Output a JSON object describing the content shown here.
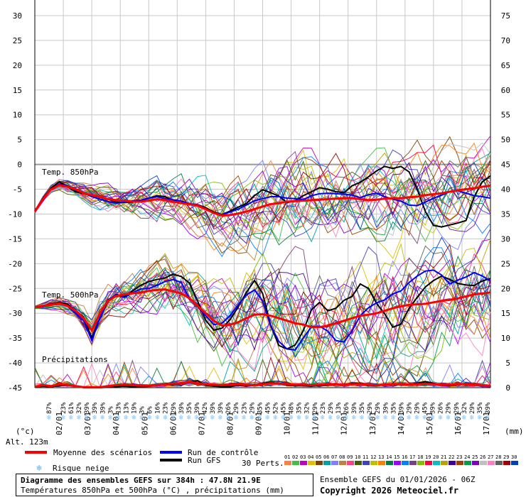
{
  "chart_data": {
    "type": "line",
    "run_days": [
      "02/01",
      "03/01",
      "04/01",
      "05/01",
      "06/01",
      "07/01",
      "08/01",
      "09/01",
      "10/01",
      "11/01",
      "12/01",
      "13/01",
      "14/01",
      "15/01",
      "16/01",
      "17/01"
    ],
    "left_axis": {
      "unit": "(°c)",
      "ticks": [
        30,
        25,
        20,
        15,
        10,
        5,
        0,
        -5,
        -10,
        -15,
        -20,
        -25,
        -30,
        -35,
        -40,
        -45
      ],
      "range": [
        -45,
        30
      ]
    },
    "right_axis": {
      "unit": "(mm)",
      "ticks": [
        75,
        70,
        65,
        60,
        55,
        50,
        45,
        40,
        35,
        30,
        25,
        20,
        15,
        10,
        5,
        0
      ],
      "range": [
        0,
        75
      ]
    },
    "sections": {
      "t850": "Temp. 850hPa",
      "t500": "Temp. 500hPa",
      "precip": "Précipitations"
    },
    "altitude": "Alt. 123m",
    "snow_risk_percent": [
      "87%",
      "23%",
      "61%",
      "32%",
      "39%",
      "39%",
      "39%",
      "3%",
      "13%",
      "13%",
      "19%",
      "3%",
      "6%",
      "16%",
      "23%",
      "29%",
      "39%",
      "35%",
      "39%",
      "42%",
      "39%",
      "39%",
      "26%",
      "29%",
      "23%",
      "29%",
      "35%",
      "45%",
      "52%",
      "45%",
      "48%",
      "35%",
      "32%",
      "29%",
      "23%",
      "29%",
      "13%",
      "26%",
      "39%",
      "35%",
      "29%",
      "29%",
      "39%",
      "35%",
      "39%",
      "29%",
      "29%",
      "45%",
      "39%",
      "26%",
      "29%",
      "29%",
      "32%",
      "29%",
      "35%",
      "39%"
    ],
    "series": [
      {
        "name": "Moyenne des scénarios",
        "group": "t850",
        "values": [
          -9.5,
          -7,
          -5,
          -4.2,
          -4.5,
          -5,
          -5.8,
          -6.2,
          -6.5,
          -7,
          -7.2,
          -7.3,
          -7.5,
          -7.5,
          -7.3,
          -7,
          -7.2,
          -7.5,
          -7.8,
          -8,
          -8.3,
          -9,
          -9.8,
          -10.3,
          -10.2,
          -9.9,
          -9.5,
          -9,
          -8.5,
          -8,
          -7.8,
          -7.5,
          -7.4,
          -7.3,
          -7.2,
          -7.1,
          -7,
          -6.9,
          -6.8,
          -6.8,
          -7,
          -7.2,
          -7.1,
          -6.9,
          -6.8,
          -6.8,
          -6.6,
          -6.5,
          -6.2,
          -6,
          -5.8,
          -5.5,
          -5.2,
          -5,
          -4.8,
          -4.5,
          -4.3
        ]
      },
      {
        "name": "Moyenne des scénarios",
        "group": "t500",
        "values": [
          -28.8,
          -28.5,
          -28.3,
          -28,
          -28.5,
          -29.5,
          -31,
          -33.5,
          -30,
          -27.5,
          -26.5,
          -26.2,
          -26,
          -25.8,
          -25.5,
          -25.3,
          -25.2,
          -25.6,
          -26,
          -27,
          -28.5,
          -30,
          -31.5,
          -32.5,
          -32.3,
          -31.8,
          -31,
          -30.3,
          -30.2,
          -30.5,
          -31,
          -31.5,
          -32,
          -32.3,
          -32.8,
          -32.8,
          -32.5,
          -32,
          -31.5,
          -31,
          -30.5,
          -30.3,
          -30,
          -29.5,
          -29,
          -28.6,
          -28.3,
          -28.2,
          -28.1,
          -27.8,
          -27.5,
          -27.3,
          -27,
          -26.6,
          -26.2,
          -26,
          -25.8
        ]
      },
      {
        "name": "Moyenne des scénarios",
        "group": "precip",
        "values": [
          0.2,
          0.5,
          0.3,
          0.7,
          0.6,
          0.3,
          0.1,
          0.1,
          0.1,
          0.3,
          0.5,
          0.6,
          0.5,
          0.4,
          0.4,
          0.5,
          0.6,
          0.8,
          0.9,
          1.2,
          0.9,
          0.7,
          0.6,
          0.5,
          0.6,
          0.7,
          0.6,
          0.5,
          0.7,
          0.9,
          0.8,
          0.7,
          0.6,
          0.6,
          0.5,
          0.6,
          0.7,
          0.6,
          0.6,
          0.7,
          0.7,
          0.6,
          0.5,
          0.6,
          0.7,
          0.7,
          0.6,
          0.7,
          0.8,
          0.7,
          0.6,
          0.6,
          0.7,
          0.7,
          0.6,
          0.5,
          0.4
        ]
      },
      {
        "name": "Run de contrôle",
        "group": "t850",
        "values": [
          -9.3,
          -7.2,
          -5,
          -4,
          -4.3,
          -5.2,
          -5.8,
          -6.5,
          -7,
          -7.5,
          -7.8,
          -7.6,
          -7.3,
          -7.2,
          -6.8,
          -6.5,
          -6.9,
          -7.1,
          -7.4,
          -7.9,
          -8.1,
          -9,
          -9.8,
          -10.1,
          -9.6,
          -9,
          -8.2,
          -7.3,
          -6.9,
          -6.5,
          -6.5,
          -6.8,
          -6.9,
          -7.1,
          -6.3,
          -5.9,
          -5.8,
          -5.9,
          -6,
          -6.2,
          -6.7,
          -6.1,
          -5.8,
          -6.5,
          -7,
          -7.4,
          -8.2,
          -8.3,
          -7.6,
          -6.8,
          -6.2,
          -5.5,
          -5.3,
          -5.8,
          -6.3,
          -6.5,
          -6.8
        ]
      },
      {
        "name": "Run de contrôle",
        "group": "t500",
        "values": [
          -28.8,
          -28.6,
          -28.3,
          -28,
          -28.5,
          -30,
          -31.5,
          -35.5,
          -31,
          -27.3,
          -26.3,
          -26.8,
          -25.9,
          -25.1,
          -25,
          -24.4,
          -23.6,
          -23.2,
          -23.8,
          -27,
          -28.7,
          -30.5,
          -32.3,
          -32,
          -30.5,
          -28.3,
          -26.3,
          -25.3,
          -27.5,
          -32.5,
          -35.7,
          -37.2,
          -37.4,
          -35,
          -32.7,
          -32.6,
          -33.6,
          -35.5,
          -35.8,
          -33.5,
          -30.5,
          -28.9,
          -27.9,
          -27.3,
          -26.1,
          -25.5,
          -23.8,
          -22.5,
          -21.5,
          -21.3,
          -22.3,
          -24.1,
          -23.3,
          -22.7,
          -21.8,
          -22.5,
          -23.5
        ]
      },
      {
        "name": "Run GFS",
        "group": "t850",
        "values": [
          -9.4,
          -6.8,
          -4.8,
          -3.5,
          -4.5,
          -5.5,
          -5.9,
          -6.3,
          -6.6,
          -7,
          -7.6,
          -7.7,
          -7.6,
          -7.3,
          -6.8,
          -6.3,
          -6.5,
          -7.2,
          -7.4,
          -8,
          -8.1,
          -8.7,
          -9.6,
          -10.1,
          -9.4,
          -8.6,
          -7.9,
          -6.3,
          -5.1,
          -5.7,
          -6.4,
          -7.7,
          -7.3,
          -6.3,
          -5.5,
          -4.7,
          -5,
          -5.5,
          -5.7,
          -4.3,
          -3.6,
          -2.5,
          -1.3,
          -0.4,
          -0.8,
          -0.4,
          -1.5,
          -5,
          -9.5,
          -12.3,
          -12.6,
          -12.2,
          -11.8,
          -11.3,
          -6.5,
          -3.5,
          -2.3
        ]
      },
      {
        "name": "Run GFS",
        "group": "t500",
        "values": [
          -28.8,
          -28.5,
          -28.2,
          -27.8,
          -28.1,
          -29.5,
          -30.8,
          -35,
          -31,
          -27.6,
          -26.2,
          -26.7,
          -25.5,
          -24.4,
          -23.6,
          -23.2,
          -22.9,
          -22.1,
          -22.6,
          -23.9,
          -27.5,
          -31.4,
          -33.4,
          -33,
          -31.3,
          -28.7,
          -25.8,
          -23.4,
          -26,
          -32.5,
          -36.5,
          -37.2,
          -36.4,
          -33.5,
          -29.3,
          -27.8,
          -29.5,
          -29,
          -27.4,
          -26.6,
          -24.1,
          -25,
          -28,
          -30.1,
          -32.8,
          -32.2,
          -29,
          -26.8,
          -24.7,
          -23.4,
          -22.5,
          -23.2,
          -24,
          -24.3,
          -24.4,
          -23.5,
          -23
        ]
      },
      {
        "name": "Run GFS",
        "group": "precip",
        "values": [
          0.1,
          0.3,
          0.2,
          0.4,
          0.5,
          0.3,
          0,
          0,
          0,
          0.1,
          0.2,
          0.3,
          0.2,
          0.2,
          0.3,
          0.4,
          0.6,
          0.6,
          0.9,
          1.2,
          1.4,
          0.5,
          0.3,
          0.2,
          0.2,
          0.5,
          0.4,
          0.5,
          0.9,
          1.1,
          0.8,
          0.5,
          0.4,
          0.4,
          0.3,
          0.4,
          0.5,
          0.6,
          0.6,
          0.9,
          0.8,
          0.5,
          0.4,
          0.6,
          0.8,
          0.7,
          0.6,
          0.9,
          1.2,
          0.9,
          0.5,
          0.4,
          0.6,
          0.8,
          0.7,
          0.5,
          0.4
        ]
      }
    ],
    "legend": {
      "mean": "Moyenne des scénarios",
      "control": "Run de contrôle",
      "gfs": "Run GFS",
      "snow": "Risque neige",
      "perts_label": "30 Perts.",
      "perts": [
        "01",
        "02",
        "03",
        "04",
        "05",
        "06",
        "07",
        "08",
        "09",
        "10",
        "11",
        "12",
        "13",
        "14",
        "15",
        "16",
        "17",
        "18",
        "19",
        "20",
        "21",
        "22",
        "23",
        "24",
        "25",
        "26",
        "27",
        "28",
        "29",
        "30"
      ],
      "pert_colors": [
        "#ff8040",
        "#40c040",
        "#c000c0",
        "#e0c000",
        "#804000",
        "#00a0a0",
        "#8080ff",
        "#c08040",
        "#ff4080",
        "#406000",
        "#4040c0",
        "#c0c000",
        "#ff8000",
        "#008040",
        "#a000ff",
        "#0080ff",
        "#804080",
        "#80c000",
        "#ff0040",
        "#00c0c0",
        "#c0a000",
        "#4000a0",
        "#a04000",
        "#00a040",
        "#8000c0",
        "#c0c0c0",
        "#ff80c0",
        "#606060",
        "#a00000",
        "#0040c0"
      ]
    },
    "colors": {
      "mean": "#ff0000",
      "control": "#0000ff",
      "gfs": "#000000",
      "snow": "#88ccff"
    }
  },
  "title": {
    "line1": "Diagramme des ensembles GEFS sur 384h : 47.8N 21.9E",
    "line2": "Températures 850hPa et 500hPa (°C) , précipitations (mm)"
  },
  "footer": {
    "run": "Ensemble GEFS du 01/01/2026 - 06Z",
    "copyright": "Copyright 2026 Meteociel.fr"
  }
}
